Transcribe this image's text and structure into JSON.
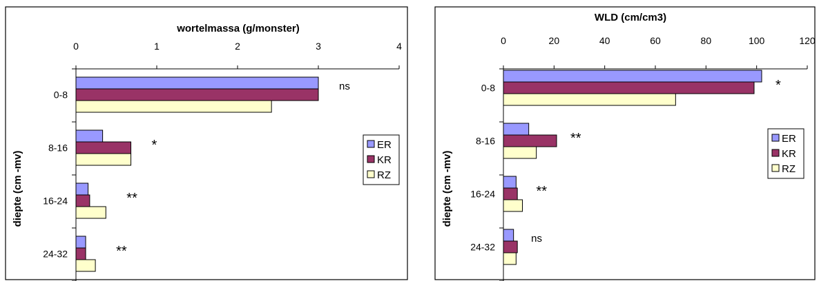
{
  "chart_data": [
    {
      "type": "bar",
      "orientation": "horizontal",
      "title": "wortelmassa (g/monster)",
      "ylabel": "diepte (cm -mv)",
      "categories": [
        "0-8",
        "8-16",
        "16-24",
        "24-32"
      ],
      "xlim": [
        0,
        4
      ],
      "xticks": [
        "0",
        "1",
        "2",
        "3",
        "4"
      ],
      "series": [
        {
          "name": "ER",
          "color": "#9999ff",
          "values": [
            3.0,
            0.33,
            0.15,
            0.12
          ]
        },
        {
          "name": "KR",
          "color": "#993366",
          "values": [
            3.0,
            0.68,
            0.17,
            0.12
          ]
        },
        {
          "name": "RZ",
          "color": "#ffffcc",
          "values": [
            2.42,
            0.68,
            0.37,
            0.24
          ]
        }
      ],
      "significance": [
        "ns",
        "*",
        "**",
        "**"
      ],
      "legend_position": "right",
      "grid": false
    },
    {
      "type": "bar",
      "orientation": "horizontal",
      "title": "WLD (cm/cm3)",
      "ylabel": "diepte (cm -mv)",
      "categories": [
        "0-8",
        "8-16",
        "16-24",
        "24-32"
      ],
      "xlim": [
        0,
        120
      ],
      "xticks": [
        "0",
        "20",
        "40",
        "60",
        "80",
        "100",
        "120"
      ],
      "series": [
        {
          "name": "ER",
          "color": "#9999ff",
          "values": [
            102,
            10,
            5,
            4
          ]
        },
        {
          "name": "KR",
          "color": "#993366",
          "values": [
            99,
            21,
            5.5,
            5.5
          ]
        },
        {
          "name": "RZ",
          "color": "#ffffcc",
          "values": [
            68,
            13,
            7.5,
            5
          ]
        }
      ],
      "significance": [
        "*",
        "**",
        "**",
        "ns"
      ],
      "legend_position": "right",
      "grid": false
    }
  ]
}
